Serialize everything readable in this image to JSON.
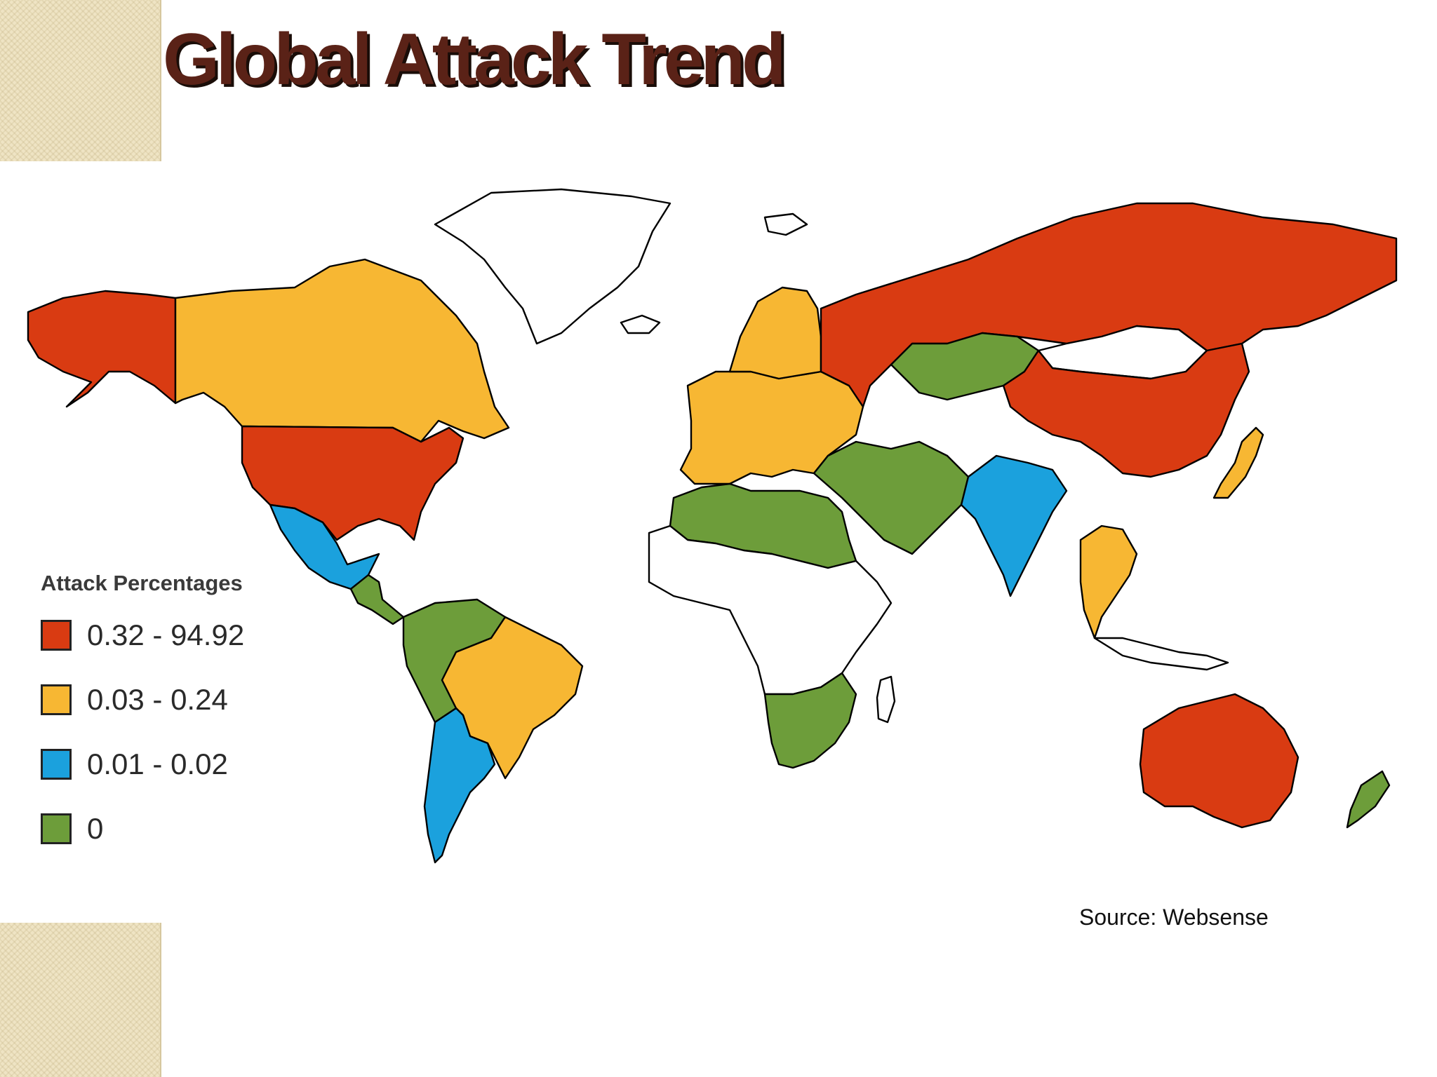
{
  "slide": {
    "title": "Global Attack Trend",
    "source": "Source: Websense"
  },
  "legend": {
    "title": "Attack Percentages",
    "items": [
      {
        "label": "0.32 - 94.92",
        "color": "#d93b12"
      },
      {
        "label": "0.03 - 0.24",
        "color": "#f7b733"
      },
      {
        "label": "0.01 - 0.02",
        "color": "#1ba1dd"
      },
      {
        "label": "0",
        "color": "#6d9d3a"
      }
    ]
  },
  "map": {
    "no_data_color": "#ffffff",
    "regions": [
      {
        "name": "Alaska",
        "class": "0.32 - 94.92"
      },
      {
        "name": "Canada",
        "class": "0.03 - 0.24"
      },
      {
        "name": "Greenland",
        "class": "none"
      },
      {
        "name": "United States",
        "class": "0.32 - 94.92"
      },
      {
        "name": "Mexico",
        "class": "0.01 - 0.02"
      },
      {
        "name": "Central America",
        "class": "0"
      },
      {
        "name": "Northern South America",
        "class": "0"
      },
      {
        "name": "Brazil",
        "class": "0.03 - 0.24"
      },
      {
        "name": "Argentina",
        "class": "0.01 - 0.02"
      },
      {
        "name": "Western Europe",
        "class": "0.03 - 0.24"
      },
      {
        "name": "Scandinavia",
        "class": "0.03 - 0.24"
      },
      {
        "name": "Russia",
        "class": "0.32 - 94.92"
      },
      {
        "name": "Central Asia",
        "class": "0"
      },
      {
        "name": "Mongolia",
        "class": "none"
      },
      {
        "name": "China",
        "class": "0.32 - 94.92"
      },
      {
        "name": "India",
        "class": "0.01 - 0.02"
      },
      {
        "name": "Middle East",
        "class": "0"
      },
      {
        "name": "North Africa",
        "class": "0"
      },
      {
        "name": "Central Africa",
        "class": "none"
      },
      {
        "name": "Southern Africa",
        "class": "0"
      },
      {
        "name": "Southeast Asia",
        "class": "0.03 - 0.24"
      },
      {
        "name": "Japan",
        "class": "0.03 - 0.24"
      },
      {
        "name": "Australia",
        "class": "0.32 - 94.92"
      },
      {
        "name": "New Zealand",
        "class": "0"
      }
    ]
  }
}
